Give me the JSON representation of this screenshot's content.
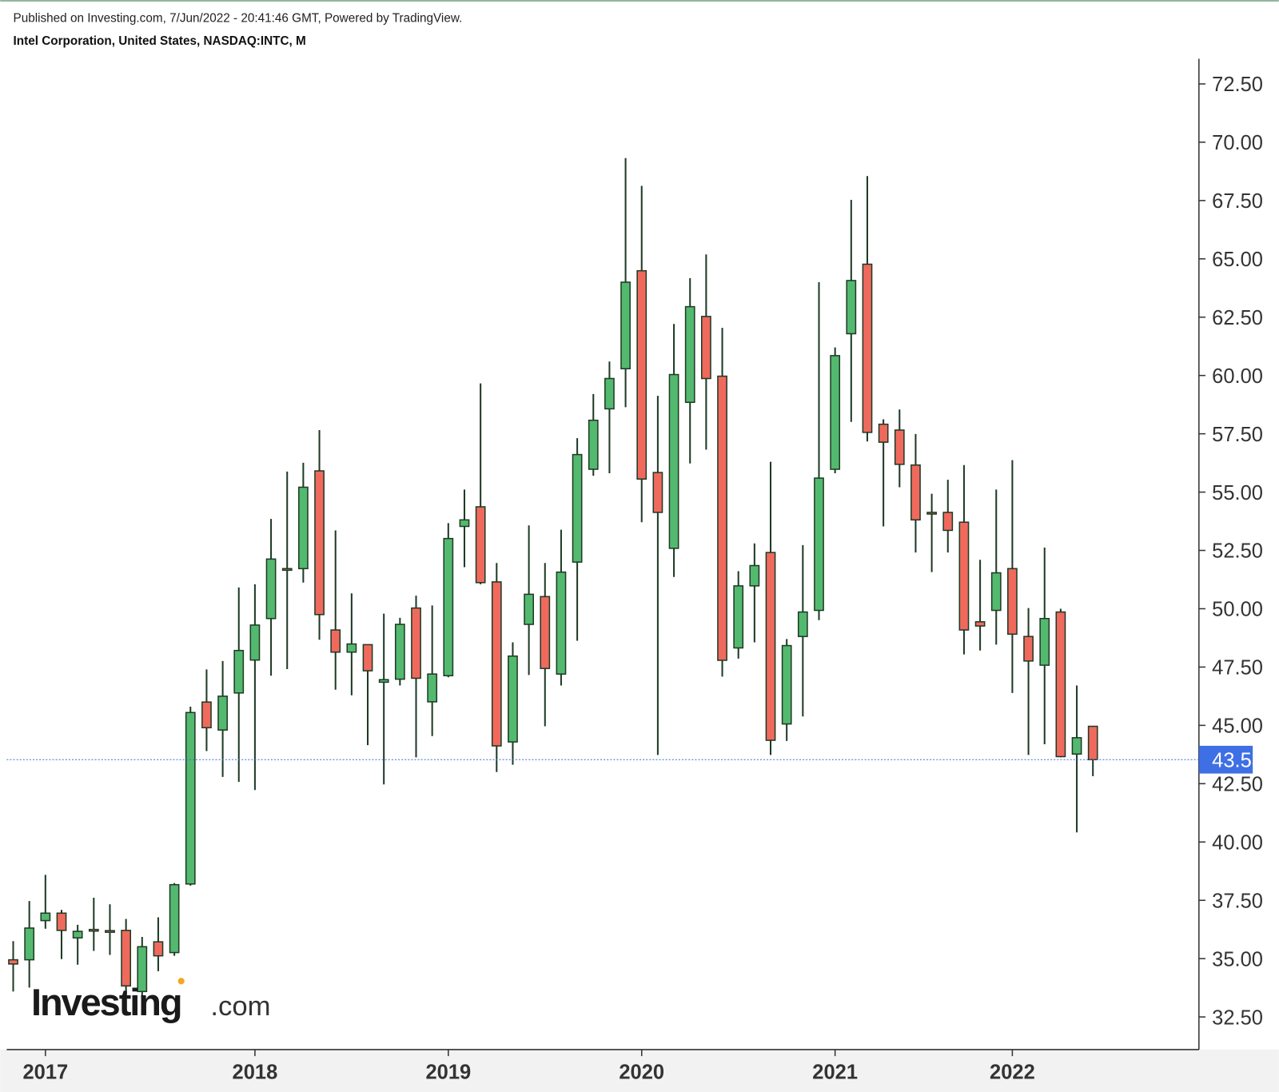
{
  "header": {
    "published": "Published on Investing.com, 7/Jun/2022 - 20:41:46 GMT, Powered by TradingView.",
    "symbol": "Intel Corporation, United States, NASDAQ:INTC, M"
  },
  "logo": {
    "name": "Investing",
    "suffix": ".com"
  },
  "chart_data": {
    "type": "candlestick",
    "categories": [
      null,
      null,
      "2017",
      null,
      null,
      null,
      null,
      null,
      null,
      null,
      null,
      null,
      null,
      null,
      null,
      "2018",
      null,
      null,
      null,
      null,
      null,
      null,
      null,
      null,
      null,
      null,
      null,
      "2019",
      null,
      null,
      null,
      null,
      null,
      null,
      null,
      null,
      null,
      null,
      null,
      "2020",
      null,
      null,
      null,
      null,
      null,
      null,
      null,
      null,
      null,
      null,
      null,
      "2021",
      null,
      null,
      null,
      null,
      null,
      null,
      null,
      null,
      null,
      null,
      "2022",
      null,
      null,
      null,
      null,
      null
    ],
    "open": [
      34.95,
      34.95,
      36.63,
      36.95,
      35.89,
      36.25,
      36.2,
      36.21,
      33.59,
      35.72,
      35.26,
      38.2,
      46.0,
      44.8,
      46.39,
      47.8,
      49.58,
      51.72,
      51.72,
      55.91,
      49.09,
      48.14,
      48.46,
      46.85,
      46.98,
      50.03,
      46.01,
      47.13,
      53.53,
      54.37,
      51.15,
      44.29,
      49.33,
      50.52,
      47.2,
      52.0,
      55.98,
      58.57,
      60.29,
      64.49,
      55.84,
      52.59,
      58.85,
      62.53,
      59.97,
      48.32,
      50.98,
      52.41,
      45.06,
      48.81,
      49.93,
      55.98,
      61.79,
      64.77,
      57.91,
      57.66,
      56.16,
      54.13,
      54.13,
      53.71,
      49.44,
      49.93,
      51.72,
      48.81,
      47.58,
      49.86,
      43.77,
      44.96
    ],
    "high": [
      35.75,
      37.47,
      38.59,
      37.09,
      36.45,
      37.61,
      37.33,
      36.7,
      35.93,
      36.77,
      38.24,
      45.8,
      47.4,
      47.76,
      50.91,
      51.05,
      53.85,
      55.88,
      56.26,
      57.66,
      53.36,
      50.66,
      48.46,
      49.79,
      49.61,
      50.56,
      50.14,
      53.67,
      55.11,
      59.66,
      51.96,
      48.56,
      53.57,
      51.96,
      53.39,
      57.31,
      59.2,
      60.6,
      69.32,
      68.13,
      59.13,
      62.21,
      64.17,
      65.19,
      62.04,
      51.61,
      52.8,
      56.3,
      48.7,
      52.73,
      64.0,
      61.2,
      67.53,
      68.55,
      58.12,
      58.54,
      57.49,
      54.93,
      55.53,
      56.16,
      52.1,
      55.11,
      56.37,
      50.03,
      52.62,
      50.0,
      46.71,
      44.96
    ],
    "low": [
      33.59,
      33.76,
      36.28,
      34.98,
      34.74,
      35.33,
      35.16,
      33.48,
      33.34,
      34.46,
      35.12,
      38.13,
      43.9,
      42.79,
      42.58,
      42.23,
      47.13,
      47.41,
      51.12,
      48.67,
      46.53,
      46.29,
      44.15,
      42.47,
      46.71,
      43.63,
      44.54,
      47.06,
      51.78,
      51.05,
      43.0,
      43.31,
      47.16,
      44.96,
      46.71,
      48.63,
      55.7,
      55.81,
      58.64,
      53.71,
      43.73,
      51.36,
      56.23,
      56.82,
      47.09,
      47.86,
      48.56,
      43.73,
      44.33,
      45.38,
      49.51,
      55.81,
      58.01,
      57.17,
      53.53,
      55.21,
      52.41,
      51.57,
      52.41,
      48.04,
      48.21,
      48.46,
      46.39,
      43.73,
      44.19,
      43.63,
      40.41,
      42.82
    ],
    "close": [
      34.77,
      36.31,
      36.95,
      36.21,
      36.17,
      36.2,
      36.15,
      33.83,
      35.51,
      35.12,
      38.17,
      45.55,
      44.9,
      46.25,
      48.21,
      49.3,
      52.13,
      51.65,
      55.21,
      49.75,
      48.14,
      48.49,
      47.34,
      46.96,
      49.33,
      47.02,
      47.2,
      53.01,
      53.81,
      51.12,
      44.12,
      47.97,
      50.62,
      47.44,
      51.57,
      56.61,
      58.08,
      59.87,
      64.0,
      55.56,
      54.13,
      60.04,
      62.95,
      59.87,
      47.79,
      50.98,
      51.85,
      44.36,
      48.42,
      49.86,
      55.6,
      60.85,
      64.07,
      57.56,
      57.14,
      56.19,
      53.81,
      54.06,
      53.36,
      49.09,
      49.26,
      51.54,
      48.91,
      47.76,
      49.58,
      43.66,
      44.47,
      43.53
    ],
    "up_color": "#53b96f",
    "down_color": "#ef6a5d",
    "wick_color": "#1f3a26",
    "last_price": 43.53,
    "last_price_color": "#3e6fe4",
    "ylim": [
      31.1,
      73.58
    ],
    "yticks": [
      {
        "value": 32.5,
        "label": "32.50"
      },
      {
        "value": 35,
        "label": "35.00"
      },
      {
        "value": 37.5,
        "label": "37.50"
      },
      {
        "value": 40,
        "label": "40.00"
      },
      {
        "value": 42.5,
        "label": "42.50"
      },
      {
        "value": 45,
        "label": "45.00"
      },
      {
        "value": 47.5,
        "label": "47.50"
      },
      {
        "value": 50,
        "label": "50.00"
      },
      {
        "value": 52.5,
        "label": "52.50"
      },
      {
        "value": 55,
        "label": "55.00"
      },
      {
        "value": 57.5,
        "label": "57.50"
      },
      {
        "value": 60,
        "label": "60.00"
      },
      {
        "value": 62.5,
        "label": "62.50"
      },
      {
        "value": 65,
        "label": "65.00"
      },
      {
        "value": 67.5,
        "label": "67.50"
      },
      {
        "value": 70,
        "label": "70.00"
      },
      {
        "value": 72.5,
        "label": "72.50"
      }
    ],
    "grid": false
  }
}
